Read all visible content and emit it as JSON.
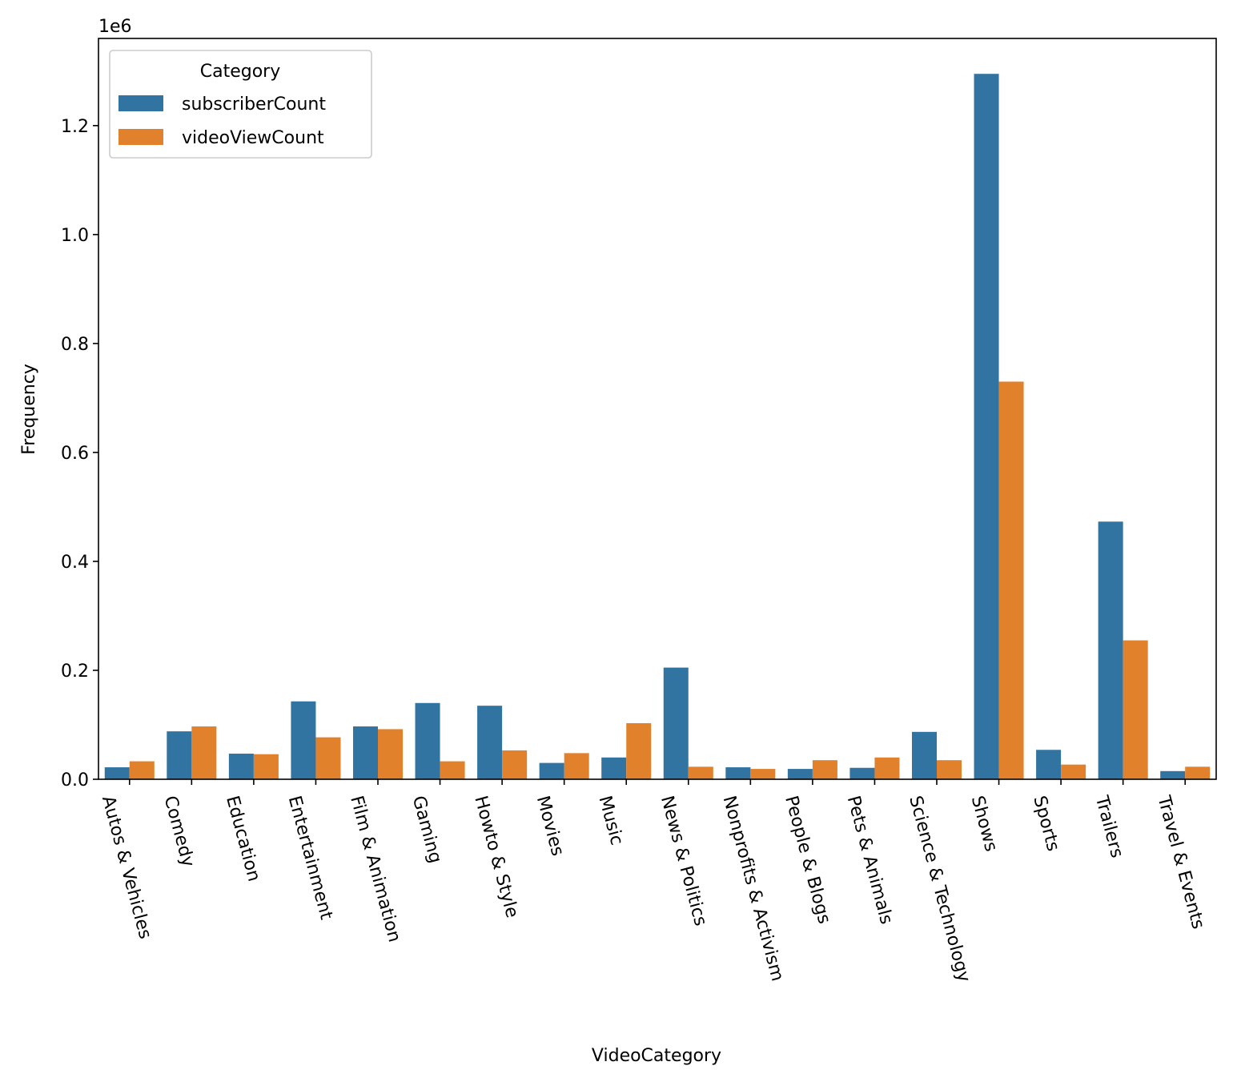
{
  "chart_data": {
    "type": "bar",
    "title": "",
    "xlabel": "VideoCategory",
    "ylabel": "Frequency",
    "y_offset_label": "1e6",
    "y_scale_multiplier": 1000000,
    "ylim": [
      0,
      1360000
    ],
    "yticks": [
      0,
      200000,
      400000,
      600000,
      800000,
      1000000,
      1200000
    ],
    "ytick_labels": [
      "0.0",
      "0.2",
      "0.4",
      "0.6",
      "0.8",
      "1.0",
      "1.2"
    ],
    "xtick_rotation_deg": 75,
    "grid": false,
    "legend": {
      "title": "Category",
      "position": "top-left"
    },
    "categories": [
      "Autos & Vehicles",
      "Comedy",
      "Education",
      "Entertainment",
      "Film & Animation",
      "Gaming",
      "Howto & Style",
      "Movies",
      "Music",
      "News & Politics",
      "Nonprofits & Activism",
      "People & Blogs",
      "Pets & Animals",
      "Science & Technology",
      "Shows",
      "Sports",
      "Trailers",
      "Travel & Events"
    ],
    "series": [
      {
        "name": "subscriberCount",
        "color": "#3274a1",
        "values": [
          22000,
          88000,
          47000,
          143000,
          97000,
          140000,
          135000,
          30000,
          40000,
          205000,
          22000,
          19000,
          21000,
          87000,
          1295000,
          54000,
          473000,
          15000
        ]
      },
      {
        "name": "videoViewCount",
        "color": "#e1812c",
        "values": [
          33000,
          97000,
          46000,
          77000,
          92000,
          33000,
          53000,
          48000,
          103000,
          23000,
          19000,
          35000,
          40000,
          35000,
          730000,
          27000,
          255000,
          23000
        ]
      }
    ]
  }
}
